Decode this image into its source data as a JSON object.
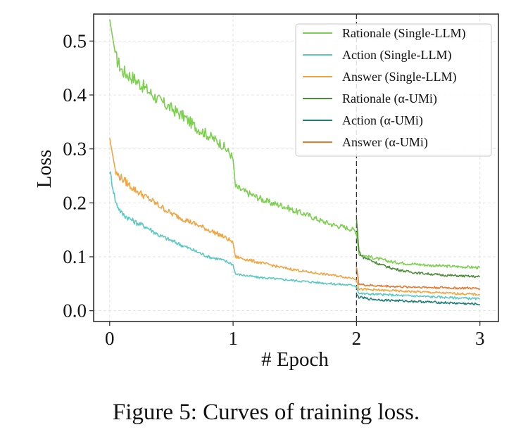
{
  "chart_data": {
    "type": "line",
    "title": "",
    "xlabel": "# Epoch",
    "ylabel": "Loss",
    "xlim": [
      -0.13,
      3.15
    ],
    "ylim": [
      -0.02,
      0.55
    ],
    "xticks": [
      0,
      1,
      2,
      3
    ],
    "xtick_labels": [
      "0",
      "1",
      "2",
      "3"
    ],
    "yticks": [
      0.0,
      0.1,
      0.2,
      0.3,
      0.4,
      0.5
    ],
    "ytick_labels": [
      "0.0",
      "0.1",
      "0.2",
      "0.3",
      "0.4",
      "0.5"
    ],
    "grid": true,
    "legend_position": "top-right",
    "vertical_marker": {
      "x": 2,
      "style": "dashed"
    },
    "series": [
      {
        "name": "Rationale (Single-LLM)",
        "color": "#7ccf4f",
        "x": [
          0,
          0.05,
          0.1,
          0.2,
          0.3,
          0.4,
          0.5,
          0.6,
          0.7,
          0.8,
          0.9,
          0.98,
          1.0,
          1.02,
          1.1,
          1.2,
          1.3,
          1.4,
          1.5,
          1.6,
          1.7,
          1.8,
          1.9,
          1.98,
          2.0,
          2.02,
          2.1,
          2.2,
          2.3,
          2.4,
          2.5,
          2.6,
          2.7,
          2.8,
          2.9,
          3.0
        ],
        "y": [
          0.54,
          0.47,
          0.445,
          0.43,
          0.41,
          0.39,
          0.375,
          0.36,
          0.34,
          0.325,
          0.31,
          0.29,
          0.28,
          0.23,
          0.22,
          0.21,
          0.2,
          0.195,
          0.185,
          0.178,
          0.168,
          0.16,
          0.155,
          0.15,
          0.145,
          0.105,
          0.1,
          0.095,
          0.09,
          0.088,
          0.086,
          0.084,
          0.083,
          0.082,
          0.081,
          0.08
        ]
      },
      {
        "name": "Action (Single-LLM)",
        "color": "#5cc8c2",
        "x": [
          0,
          0.05,
          0.1,
          0.2,
          0.3,
          0.4,
          0.5,
          0.6,
          0.7,
          0.8,
          0.9,
          0.98,
          1.0,
          1.02,
          1.2,
          1.4,
          1.6,
          1.8,
          1.98,
          2.0,
          2.02,
          2.2,
          2.4,
          2.6,
          2.8,
          3.0
        ],
        "y": [
          0.26,
          0.2,
          0.18,
          0.165,
          0.155,
          0.14,
          0.13,
          0.12,
          0.11,
          0.1,
          0.095,
          0.088,
          0.085,
          0.068,
          0.062,
          0.058,
          0.054,
          0.05,
          0.047,
          0.045,
          0.032,
          0.03,
          0.028,
          0.026,
          0.024,
          0.022
        ]
      },
      {
        "name": "Answer (Single-LLM)",
        "color": "#f0a542",
        "x": [
          0,
          0.05,
          0.1,
          0.2,
          0.3,
          0.4,
          0.5,
          0.6,
          0.7,
          0.8,
          0.9,
          0.98,
          1.0,
          1.02,
          1.2,
          1.4,
          1.6,
          1.8,
          1.98,
          2.0,
          2.02,
          2.2,
          2.4,
          2.6,
          2.8,
          3.0
        ],
        "y": [
          0.32,
          0.255,
          0.245,
          0.225,
          0.21,
          0.195,
          0.18,
          0.17,
          0.16,
          0.15,
          0.14,
          0.13,
          0.125,
          0.1,
          0.09,
          0.08,
          0.072,
          0.066,
          0.06,
          0.058,
          0.04,
          0.038,
          0.036,
          0.034,
          0.032,
          0.03
        ]
      },
      {
        "name": "Rationale (α-UMi)",
        "color": "#4e8c3a",
        "x": [
          2.0,
          2.02,
          2.05,
          2.1,
          2.2,
          2.3,
          2.4,
          2.5,
          2.6,
          2.7,
          2.8,
          2.9,
          3.0
        ],
        "y": [
          0.17,
          0.11,
          0.1,
          0.095,
          0.085,
          0.078,
          0.073,
          0.07,
          0.068,
          0.066,
          0.065,
          0.064,
          0.063
        ]
      },
      {
        "name": "Action (α-UMi)",
        "color": "#1f7f78",
        "x": [
          2.0,
          2.02,
          2.05,
          2.1,
          2.2,
          2.3,
          2.4,
          2.5,
          2.6,
          2.7,
          2.8,
          2.9,
          3.0
        ],
        "y": [
          0.03,
          0.025,
          0.024,
          0.022,
          0.02,
          0.019,
          0.018,
          0.017,
          0.016,
          0.015,
          0.014,
          0.013,
          0.012
        ]
      },
      {
        "name": "Answer (α-UMi)",
        "color": "#e07a35",
        "x": [
          2.0,
          2.02,
          2.05,
          2.1,
          2.2,
          2.3,
          2.4,
          2.5,
          2.6,
          2.7,
          2.8,
          2.9,
          3.0
        ],
        "y": [
          0.08,
          0.05,
          0.048,
          0.047,
          0.046,
          0.045,
          0.044,
          0.044,
          0.043,
          0.043,
          0.042,
          0.042,
          0.041
        ]
      }
    ]
  },
  "legend_symbols": {
    "rationale_umi": "Rationale (",
    "action_umi": "Action (",
    "answer_umi": "Answer (",
    "alpha": "α",
    "umi_suffix": "-UMi)"
  },
  "caption": "Figure 5: Curves of training loss."
}
